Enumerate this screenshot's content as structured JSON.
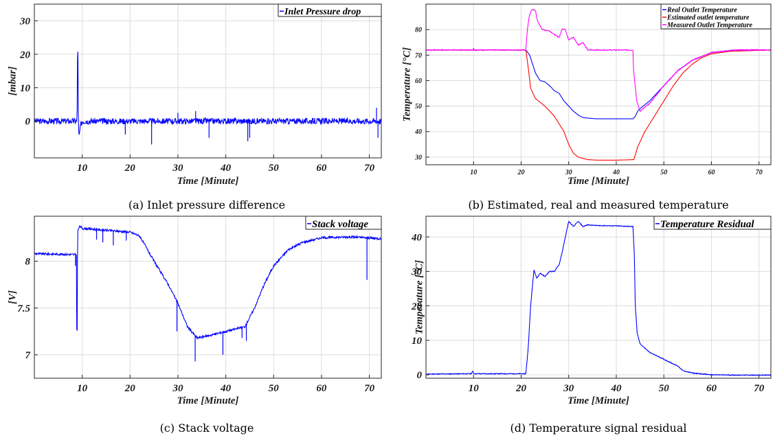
{
  "colors": {
    "blue": "#0000ff",
    "red": "#ff0000",
    "magenta": "#ff00ff"
  },
  "chart_data": [
    {
      "type": "line",
      "caption": "(a) Inlet pressure difference",
      "xlabel": "Time [Minute]",
      "ylabel": "[mbar]",
      "xlim": [
        0,
        72.5
      ],
      "ylim": [
        -11,
        35
      ],
      "xticks": [
        10,
        20,
        30,
        40,
        50,
        60,
        70
      ],
      "yticks": [
        0,
        10,
        20,
        30
      ],
      "grid": true,
      "legend_position": "top-right",
      "series": [
        {
          "name": "Inlet Pressure drop",
          "color": "#0000ff",
          "noise": 0.9,
          "seed": 3,
          "x": [
            0,
            8.9,
            9.0,
            9.05,
            9.1,
            9.2,
            9.35,
            9.5,
            9.7,
            10.0,
            72.5
          ],
          "y": [
            0,
            0,
            8,
            33,
            21,
            -2,
            -4.5,
            -3,
            -1,
            0,
            0
          ],
          "spikes": [
            [
              24.5,
              -7
            ],
            [
              19,
              -4
            ],
            [
              33.7,
              3
            ],
            [
              36.5,
              -5
            ],
            [
              44.6,
              -6
            ],
            [
              45,
              -5
            ],
            [
              30,
              2.5
            ],
            [
              71.5,
              4
            ],
            [
              71.8,
              -5
            ]
          ]
        }
      ]
    },
    {
      "type": "line",
      "caption": "(b) Estimated, real and measured temperature",
      "xlabel": "Time [Minute]",
      "ylabel": "Temperature [°C]",
      "xlim": [
        0,
        72.5
      ],
      "ylim": [
        27,
        90
      ],
      "xticks": [
        10,
        20,
        30,
        40,
        50,
        60,
        70
      ],
      "yticks": [
        30,
        40,
        50,
        60,
        70,
        80
      ],
      "grid": true,
      "legend_position": "top-right",
      "series": [
        {
          "name": "Real Outlet Temperature",
          "color": "#0000ff",
          "noise": 0,
          "seed": 5,
          "x": [
            0,
            21,
            21.8,
            22.5,
            23,
            24,
            25,
            26,
            27,
            28,
            29,
            30,
            31,
            32,
            33,
            34,
            36,
            40,
            43.5,
            44,
            44.5,
            45,
            47,
            50,
            53,
            56,
            60,
            65,
            72.5
          ],
          "y": [
            72,
            72,
            70,
            66,
            63,
            60,
            59.5,
            58,
            56,
            55,
            52,
            50,
            48,
            46.5,
            45.5,
            45.3,
            45,
            45,
            45,
            46,
            48,
            49,
            52,
            58,
            64,
            68,
            71,
            72,
            72
          ]
        },
        {
          "name": "Estimated outlet temperature",
          "color": "#ff0000",
          "noise": 0,
          "seed": 6,
          "x": [
            0,
            21,
            21.5,
            22,
            23,
            25,
            27,
            29,
            30,
            31,
            32,
            34,
            36,
            40,
            43.7,
            44.5,
            46,
            48,
            50,
            52,
            54,
            56,
            58,
            60,
            64,
            72.5
          ],
          "y": [
            72,
            72,
            65,
            57,
            53,
            50,
            46,
            40,
            35,
            31.5,
            30,
            29,
            28.8,
            28.8,
            29,
            34,
            40,
            46,
            52,
            58,
            63,
            66.5,
            69,
            70.5,
            71.5,
            72
          ]
        },
        {
          "name": "Measured Outlet Temperature",
          "color": "#ff00ff",
          "noise": 0.2,
          "seed": 7,
          "x": [
            0,
            9.9,
            10,
            10.1,
            21,
            21.3,
            21.8,
            22.3,
            23,
            23.5,
            24.5,
            26,
            27,
            28,
            28.7,
            29.3,
            30,
            31,
            32,
            33,
            34,
            36,
            40,
            43.5,
            43.6,
            44.3,
            45,
            47,
            50,
            53,
            56,
            60,
            65,
            72.5
          ],
          "y": [
            72,
            72,
            73,
            72,
            72,
            80,
            86,
            88,
            87.5,
            83,
            80,
            79.5,
            78,
            77,
            80.5,
            80,
            76,
            77,
            74,
            75,
            72,
            72,
            72,
            72,
            65,
            52,
            48,
            51,
            58,
            64,
            68,
            71,
            72,
            72
          ]
        }
      ]
    },
    {
      "type": "line",
      "caption": "(c) Stack voltage",
      "xlabel": "Time [Minute]",
      "ylabel": "[V]",
      "xlim": [
        0,
        72.5
      ],
      "ylim": [
        6.75,
        8.48
      ],
      "xticks": [
        10,
        20,
        30,
        40,
        50,
        60,
        70
      ],
      "yticks": [
        7,
        7.5,
        8
      ],
      "grid": true,
      "legend_position": "top-right",
      "series": [
        {
          "name": "Stack voltage",
          "color": "#0000ff",
          "noise": 0.012,
          "seed": 9,
          "x": [
            0,
            8.8,
            8.9,
            9.0,
            9.1,
            9.3,
            9.6,
            10,
            15,
            20,
            22,
            25,
            28,
            30,
            32,
            34,
            36,
            40,
            44,
            46,
            48,
            50,
            53,
            56,
            60,
            66,
            72.5
          ],
          "y": [
            8.08,
            8.07,
            6.75,
            8.0,
            8.32,
            8.36,
            8.37,
            8.35,
            8.33,
            8.31,
            8.27,
            8.0,
            7.75,
            7.55,
            7.3,
            7.18,
            7.2,
            7.25,
            7.3,
            7.5,
            7.75,
            7.95,
            8.12,
            8.2,
            8.25,
            8.26,
            8.24
          ],
          "spikes": [
            [
              8.6,
              7.95
            ],
            [
              13,
              8.23
            ],
            [
              14.3,
              8.2
            ],
            [
              16.5,
              8.17
            ],
            [
              19.2,
              8.22
            ],
            [
              33.6,
              6.93
            ],
            [
              29.8,
              7.25
            ],
            [
              39.4,
              7.0
            ],
            [
              43.4,
              7.18
            ],
            [
              44.3,
              7.15
            ],
            [
              69.5,
              7.8
            ]
          ]
        }
      ]
    },
    {
      "type": "line",
      "caption": "(d) Temperature signal residual",
      "xlabel": "Time [Minute]",
      "ylabel": "Temperature [°C]",
      "xlim": [
        0,
        72.5
      ],
      "ylim": [
        -1,
        46
      ],
      "xticks": [
        10,
        20,
        30,
        40,
        50,
        60,
        70
      ],
      "yticks": [
        0,
        10,
        20,
        30,
        40
      ],
      "grid": true,
      "legend_position": "top-right",
      "series": [
        {
          "name": "Temperature Residual",
          "color": "#0000ff",
          "noise": 0.12,
          "seed": 11,
          "x": [
            0,
            9.5,
            9.8,
            10.1,
            21,
            21.5,
            22,
            22.7,
            23.3,
            24,
            25,
            26,
            27,
            28,
            28.7,
            29.3,
            30,
            31,
            32,
            33,
            34,
            36,
            40,
            43.5,
            43.8,
            44,
            44.4,
            45,
            47,
            50,
            53,
            54,
            56,
            60,
            65,
            72.5
          ],
          "y": [
            0.2,
            0.3,
            1,
            0.3,
            0.3,
            8,
            20,
            30.5,
            28,
            29.5,
            28.5,
            30,
            30,
            32,
            36,
            40,
            44.5,
            43,
            44.5,
            43,
            43.5,
            43.3,
            43.2,
            43,
            35,
            20,
            12,
            9,
            6.5,
            4.5,
            2.5,
            1.2,
            0.5,
            0,
            -0.1,
            -0.1
          ]
        }
      ]
    }
  ]
}
